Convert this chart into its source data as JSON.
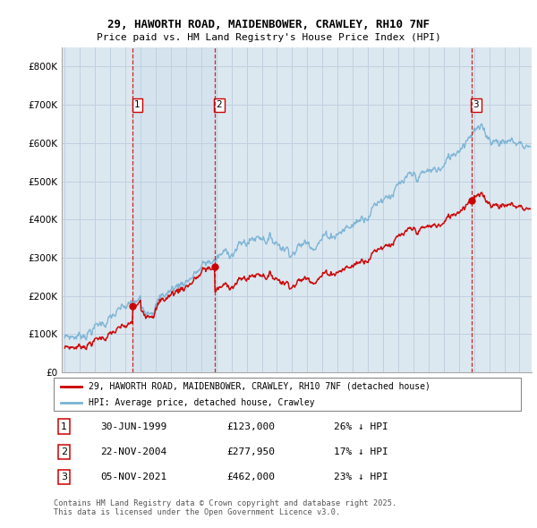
{
  "title_line1": "29, HAWORTH ROAD, MAIDENBOWER, CRAWLEY, RH10 7NF",
  "title_line2": "Price paid vs. HM Land Registry's House Price Index (HPI)",
  "legend_red": "29, HAWORTH ROAD, MAIDENBOWER, CRAWLEY, RH10 7NF (detached house)",
  "legend_blue": "HPI: Average price, detached house, Crawley",
  "transactions": [
    {
      "num": 1,
      "date": "30-JUN-1999",
      "price": 123000,
      "pct": "26%",
      "dir": "↓"
    },
    {
      "num": 2,
      "date": "22-NOV-2004",
      "price": 277950,
      "pct": "17%",
      "dir": "↓"
    },
    {
      "num": 3,
      "date": "05-NOV-2021",
      "price": 462000,
      "pct": "23%",
      "dir": "↓"
    }
  ],
  "footnote": "Contains HM Land Registry data © Crown copyright and database right 2025.\nThis data is licensed under the Open Government Licence v3.0.",
  "red_color": "#cc0000",
  "blue_color": "#7ab3d4",
  "dashed_color": "#cc0000",
  "background_color": "#ffffff",
  "chart_bg": "#dce8f0",
  "grid_color": "#c0d0e0",
  "ylim": [
    0,
    850000
  ],
  "yticks": [
    0,
    100000,
    200000,
    300000,
    400000,
    500000,
    600000,
    700000,
    800000
  ],
  "xstart": 1994.8,
  "xend": 2025.8,
  "t1": 1999.49,
  "t2": 2004.89,
  "t3": 2021.84,
  "p1": 123000,
  "p2": 277950,
  "p3": 462000
}
